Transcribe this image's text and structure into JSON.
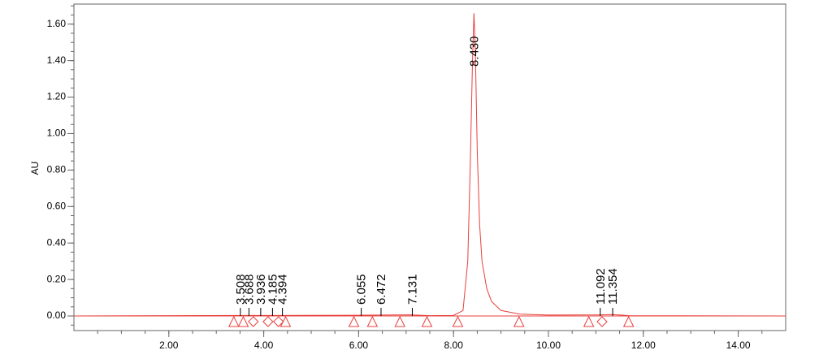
{
  "chart_data": {
    "type": "line",
    "y_label": "AU",
    "xlim": [
      0,
      15
    ],
    "ylim": [
      -0.08,
      1.71
    ],
    "xticks": [
      {
        "value": 2,
        "label": "2.00"
      },
      {
        "value": 4,
        "label": "4.00"
      },
      {
        "value": 6,
        "label": "6.00"
      },
      {
        "value": 8,
        "label": "8.00"
      },
      {
        "value": 10,
        "label": "10.00"
      },
      {
        "value": 12,
        "label": "12.00"
      },
      {
        "value": 14,
        "label": "14.00"
      }
    ],
    "yticks": [
      {
        "value": 0,
        "label": "0.00"
      },
      {
        "value": 0.2,
        "label": "0.20"
      },
      {
        "value": 0.4,
        "label": "0.40"
      },
      {
        "value": 0.6,
        "label": "0.60"
      },
      {
        "value": 0.8,
        "label": "0.80"
      },
      {
        "value": 1,
        "label": "1.00"
      },
      {
        "value": 1.2,
        "label": "1.20"
      },
      {
        "value": 1.4,
        "label": "1.40"
      },
      {
        "value": 1.6,
        "label": "1.60"
      }
    ],
    "color": "#e8403c",
    "x": [
      0,
      3.5,
      4.4,
      6.0,
      6.4,
      7.1,
      7.5,
      8.0,
      8.2,
      8.3,
      8.35,
      8.4,
      8.43,
      8.46,
      8.5,
      8.55,
      8.6,
      8.7,
      8.8,
      9.0,
      9.4,
      10.0,
      11.1,
      11.35,
      11.7,
      15
    ],
    "values": [
      0,
      0.003,
      0.003,
      0.004,
      0.005,
      0.006,
      0.002,
      0.003,
      0.03,
      0.3,
      0.8,
      1.4,
      1.66,
      1.45,
      0.9,
      0.5,
      0.3,
      0.15,
      0.08,
      0.03,
      0.01,
      0.005,
      0.006,
      0.008,
      0.002,
      0
    ],
    "peaks": [
      {
        "value": 3.508,
        "label": "3.508"
      },
      {
        "value": 3.688,
        "label": "3.688"
      },
      {
        "value": 3.936,
        "label": "3.936"
      },
      {
        "value": 4.185,
        "label": "4.185"
      },
      {
        "value": 4.394,
        "label": "4.394"
      },
      {
        "value": 6.055,
        "label": "6.055"
      },
      {
        "value": 6.472,
        "label": "6.472"
      },
      {
        "value": 7.131,
        "label": "7.131"
      },
      {
        "value": 8.43,
        "label": "8.430"
      },
      {
        "value": 11.092,
        "label": "11.092"
      },
      {
        "value": 11.354,
        "label": "11.354"
      }
    ],
    "peak_markers": [
      {
        "x": 3.37,
        "shape": "triangle"
      },
      {
        "x": 3.57,
        "shape": "triangle"
      },
      {
        "x": 3.78,
        "shape": "diamond"
      },
      {
        "x": 4.09,
        "shape": "diamond"
      },
      {
        "x": 4.31,
        "shape": "diamond"
      },
      {
        "x": 4.46,
        "shape": "triangle"
      },
      {
        "x": 5.9,
        "shape": "triangle"
      },
      {
        "x": 6.29,
        "shape": "triangle"
      },
      {
        "x": 6.87,
        "shape": "triangle"
      },
      {
        "x": 7.44,
        "shape": "triangle"
      },
      {
        "x": 8.09,
        "shape": "triangle"
      },
      {
        "x": 9.38,
        "shape": "triangle"
      },
      {
        "x": 10.85,
        "shape": "triangle"
      },
      {
        "x": 11.13,
        "shape": "diamond"
      },
      {
        "x": 11.69,
        "shape": "triangle"
      }
    ]
  }
}
